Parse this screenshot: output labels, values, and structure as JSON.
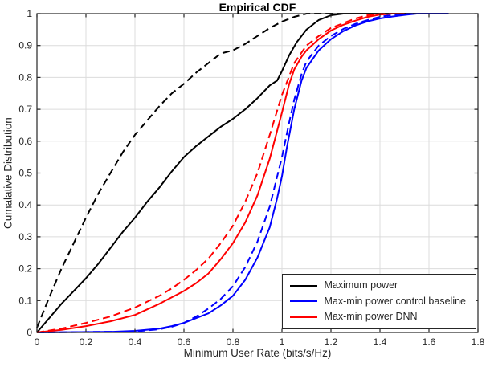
{
  "chart_data": {
    "type": "line",
    "title": "Empirical CDF",
    "xlabel": "Minimum User Rate (bits/s/Hz)",
    "ylabel": "Cumalative Distribution",
    "xlim": [
      0,
      1.8
    ],
    "ylim": [
      0,
      1
    ],
    "grid": true,
    "x_ticks": [
      0,
      0.2,
      0.4,
      0.6,
      0.8,
      1,
      1.2,
      1.4,
      1.6,
      1.8
    ],
    "x_tick_labels": [
      "0",
      "0.2",
      "0.4",
      "0.6",
      "0.8",
      "1",
      "1.2",
      "1.4",
      "1.6",
      "1.8"
    ],
    "y_ticks": [
      0,
      0.1,
      0.2,
      0.3,
      0.4,
      0.5,
      0.6,
      0.7,
      0.8,
      0.9,
      1
    ],
    "y_tick_labels": [
      "0",
      "0.1",
      "0.2",
      "0.3",
      "0.4",
      "0.5",
      "0.6",
      "0.7",
      "0.8",
      "0.9",
      "1"
    ],
    "colors": {
      "black": "#000000",
      "blue": "#0000ff",
      "red": "#ff0000",
      "grid": "#dcdcdc",
      "axis": "#262626",
      "text": "#262626"
    },
    "legend": {
      "position": "bottom-right",
      "items": [
        {
          "label": "Maximum power",
          "color": "#000000"
        },
        {
          "label": "Max-min power control baseline",
          "color": "#0000ff"
        },
        {
          "label": "Max-min power DNN",
          "color": "#ff0000"
        }
      ]
    },
    "series": [
      {
        "name": "Maximum power (solid)",
        "color": "#000000",
        "style": "solid",
        "points": [
          [
            0,
            0
          ],
          [
            0.05,
            0.045
          ],
          [
            0.1,
            0.09
          ],
          [
            0.15,
            0.13
          ],
          [
            0.2,
            0.17
          ],
          [
            0.25,
            0.215
          ],
          [
            0.3,
            0.265
          ],
          [
            0.35,
            0.315
          ],
          [
            0.4,
            0.36
          ],
          [
            0.45,
            0.41
          ],
          [
            0.5,
            0.455
          ],
          [
            0.55,
            0.505
          ],
          [
            0.6,
            0.55
          ],
          [
            0.65,
            0.585
          ],
          [
            0.7,
            0.615
          ],
          [
            0.75,
            0.645
          ],
          [
            0.8,
            0.67
          ],
          [
            0.85,
            0.7
          ],
          [
            0.9,
            0.735
          ],
          [
            0.95,
            0.775
          ],
          [
            0.98,
            0.79
          ],
          [
            1.0,
            0.82
          ],
          [
            1.03,
            0.87
          ],
          [
            1.06,
            0.91
          ],
          [
            1.1,
            0.95
          ],
          [
            1.15,
            0.98
          ],
          [
            1.2,
            0.995
          ],
          [
            1.25,
            1.0
          ],
          [
            1.68,
            1.0
          ]
        ]
      },
      {
        "name": "Maximum power (dashed)",
        "color": "#000000",
        "style": "dashed",
        "points": [
          [
            0,
            0.015
          ],
          [
            0.05,
            0.11
          ],
          [
            0.1,
            0.2
          ],
          [
            0.15,
            0.28
          ],
          [
            0.2,
            0.36
          ],
          [
            0.25,
            0.435
          ],
          [
            0.3,
            0.5
          ],
          [
            0.35,
            0.565
          ],
          [
            0.4,
            0.62
          ],
          [
            0.45,
            0.665
          ],
          [
            0.5,
            0.71
          ],
          [
            0.55,
            0.75
          ],
          [
            0.6,
            0.78
          ],
          [
            0.65,
            0.815
          ],
          [
            0.7,
            0.845
          ],
          [
            0.75,
            0.875
          ],
          [
            0.8,
            0.885
          ],
          [
            0.85,
            0.905
          ],
          [
            0.9,
            0.93
          ],
          [
            0.95,
            0.955
          ],
          [
            1.0,
            0.975
          ],
          [
            1.05,
            0.99
          ],
          [
            1.1,
            1.0
          ],
          [
            1.68,
            1.0
          ]
        ]
      },
      {
        "name": "Max-min power control baseline (solid)",
        "color": "#0000ff",
        "style": "solid",
        "points": [
          [
            0,
            0
          ],
          [
            0.3,
            0.002
          ],
          [
            0.4,
            0.005
          ],
          [
            0.5,
            0.012
          ],
          [
            0.55,
            0.02
          ],
          [
            0.6,
            0.03
          ],
          [
            0.65,
            0.045
          ],
          [
            0.7,
            0.06
          ],
          [
            0.75,
            0.085
          ],
          [
            0.8,
            0.115
          ],
          [
            0.85,
            0.165
          ],
          [
            0.9,
            0.235
          ],
          [
            0.95,
            0.33
          ],
          [
            0.98,
            0.42
          ],
          [
            1.0,
            0.49
          ],
          [
            1.02,
            0.58
          ],
          [
            1.05,
            0.7
          ],
          [
            1.08,
            0.79
          ],
          [
            1.1,
            0.83
          ],
          [
            1.15,
            0.885
          ],
          [
            1.2,
            0.92
          ],
          [
            1.25,
            0.945
          ],
          [
            1.3,
            0.963
          ],
          [
            1.35,
            0.976
          ],
          [
            1.4,
            0.985
          ],
          [
            1.45,
            0.991
          ],
          [
            1.5,
            0.996
          ],
          [
            1.55,
            1.0
          ],
          [
            1.68,
            1.0
          ]
        ]
      },
      {
        "name": "Max-min power control baseline (dashed)",
        "color": "#0000ff",
        "style": "dashed",
        "points": [
          [
            0,
            0
          ],
          [
            0.4,
            0.003
          ],
          [
            0.5,
            0.01
          ],
          [
            0.55,
            0.018
          ],
          [
            0.6,
            0.03
          ],
          [
            0.65,
            0.05
          ],
          [
            0.7,
            0.075
          ],
          [
            0.75,
            0.105
          ],
          [
            0.8,
            0.145
          ],
          [
            0.85,
            0.205
          ],
          [
            0.9,
            0.285
          ],
          [
            0.95,
            0.395
          ],
          [
            1.0,
            0.55
          ],
          [
            1.03,
            0.66
          ],
          [
            1.05,
            0.73
          ],
          [
            1.08,
            0.81
          ],
          [
            1.1,
            0.85
          ],
          [
            1.15,
            0.9
          ],
          [
            1.2,
            0.93
          ],
          [
            1.25,
            0.952
          ],
          [
            1.3,
            0.968
          ],
          [
            1.35,
            0.98
          ],
          [
            1.4,
            0.99
          ],
          [
            1.45,
            0.996
          ],
          [
            1.5,
            1.0
          ],
          [
            1.68,
            1.0
          ]
        ]
      },
      {
        "name": "Max-min power DNN (dashed)",
        "color": "#ff0000",
        "style": "dashed",
        "points": [
          [
            0,
            0
          ],
          [
            0.1,
            0.012
          ],
          [
            0.2,
            0.03
          ],
          [
            0.3,
            0.05
          ],
          [
            0.4,
            0.078
          ],
          [
            0.5,
            0.115
          ],
          [
            0.55,
            0.138
          ],
          [
            0.6,
            0.165
          ],
          [
            0.65,
            0.196
          ],
          [
            0.7,
            0.232
          ],
          [
            0.75,
            0.28
          ],
          [
            0.8,
            0.335
          ],
          [
            0.85,
            0.41
          ],
          [
            0.9,
            0.5
          ],
          [
            0.95,
            0.62
          ],
          [
            1.0,
            0.745
          ],
          [
            1.05,
            0.845
          ],
          [
            1.1,
            0.9
          ],
          [
            1.15,
            0.93
          ],
          [
            1.2,
            0.955
          ],
          [
            1.25,
            0.97
          ],
          [
            1.3,
            0.985
          ],
          [
            1.35,
            0.995
          ],
          [
            1.4,
            1.0
          ],
          [
            1.47,
            1.0
          ]
        ]
      },
      {
        "name": "Max-min power DNN (solid)",
        "color": "#ff0000",
        "style": "solid",
        "points": [
          [
            0,
            0
          ],
          [
            0.1,
            0.008
          ],
          [
            0.2,
            0.02
          ],
          [
            0.3,
            0.035
          ],
          [
            0.4,
            0.055
          ],
          [
            0.5,
            0.09
          ],
          [
            0.55,
            0.11
          ],
          [
            0.6,
            0.13
          ],
          [
            0.65,
            0.155
          ],
          [
            0.7,
            0.185
          ],
          [
            0.75,
            0.23
          ],
          [
            0.8,
            0.28
          ],
          [
            0.85,
            0.345
          ],
          [
            0.9,
            0.43
          ],
          [
            0.95,
            0.545
          ],
          [
            1.0,
            0.69
          ],
          [
            1.03,
            0.78
          ],
          [
            1.05,
            0.825
          ],
          [
            1.08,
            0.865
          ],
          [
            1.1,
            0.885
          ],
          [
            1.15,
            0.92
          ],
          [
            1.2,
            0.947
          ],
          [
            1.25,
            0.965
          ],
          [
            1.3,
            0.978
          ],
          [
            1.35,
            0.99
          ],
          [
            1.4,
            0.997
          ],
          [
            1.45,
            1.0
          ],
          [
            1.5,
            1.0
          ]
        ]
      }
    ]
  }
}
